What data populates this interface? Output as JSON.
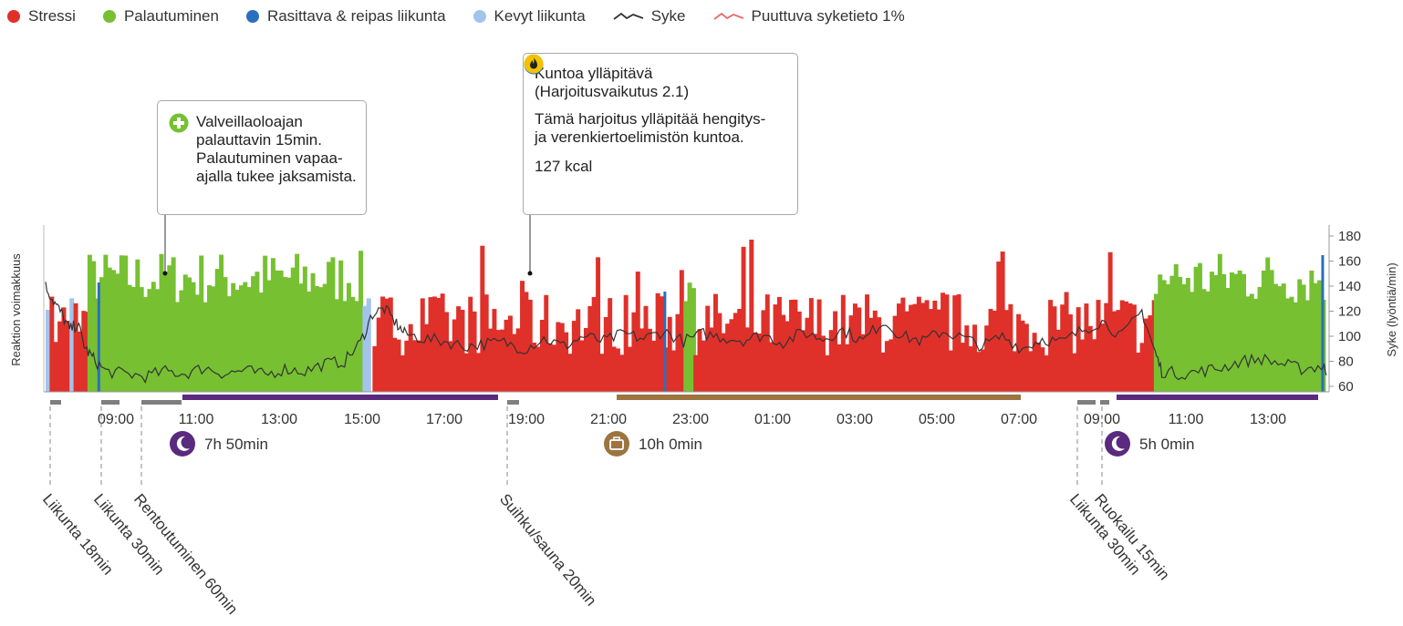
{
  "legend": {
    "stress": "Stressi",
    "recovery": "Palautuminen",
    "heavy": "Rasittava & reipas liikunta",
    "light": "Kevyt liikunta",
    "hr": "Syke",
    "missing": "Puuttuva syketieto 1%"
  },
  "colors": {
    "stress": "#e0302a",
    "recovery": "#76c032",
    "heavy": "#2a6fbf",
    "light": "#a2c4ec",
    "hr_line": "#333333",
    "missing": "#e86a6a",
    "sleep": "#5a2a7e",
    "work": "#9b7440",
    "activity_marker": "#7f7f7f"
  },
  "callouts": {
    "recovery": {
      "icon": "plus-circle-icon",
      "text": "Valveillaoloajan palauttavin 15min. Palautuminen vapaa-ajalla tukee jaksamista."
    },
    "exercise": {
      "icon": "running-icon",
      "title": "Kuntoa ylläpitävä (Harjoitusvaikutus 2.1)",
      "body": "Tämä harjoitus ylläpitää hengitys- ja verenkiertoelimistön kuntoa.",
      "kcal_icon": "flame-icon",
      "kcal": "127 kcal"
    }
  },
  "chart_data": {
    "type": "bar",
    "y_left_label": "Reaktion voimakkuus",
    "y_right_label": "Syke (lyöntiä/min)",
    "y_right_ticks": [
      60,
      80,
      100,
      120,
      140,
      160,
      180
    ],
    "x_ticks": [
      "09:00",
      "11:00",
      "13:00",
      "15:00",
      "17:00",
      "19:00",
      "21:00",
      "23:00",
      "01:00",
      "03:00",
      "05:00",
      "07:00",
      "09:00",
      "11:00",
      "13:00"
    ],
    "periods": [
      {
        "type": "sleep",
        "icon": "moon-icon",
        "duration": "7h 50min"
      },
      {
        "type": "work",
        "icon": "briefcase-icon",
        "duration": "10h 0min"
      },
      {
        "type": "sleep",
        "icon": "moon-icon",
        "duration": "5h 0min"
      }
    ],
    "activities": [
      "Liikunta 18min",
      "Liikunta 30min",
      "Rentoutuminen 60min",
      "Suihku/sauna 20min",
      "Liikunta 30min",
      "Ruokailu 15min"
    ],
    "segments": [
      {
        "kind": "light",
        "from": 0.0,
        "to": 0.1
      },
      {
        "kind": "stress",
        "from": 0.1,
        "to": 0.6
      },
      {
        "kind": "light",
        "from": 0.6,
        "to": 0.7
      },
      {
        "kind": "stress",
        "from": 0.7,
        "to": 1.05
      },
      {
        "kind": "recovery",
        "from": 1.05,
        "to": 7.95
      },
      {
        "kind": "light",
        "from": 7.95,
        "to": 8.2
      },
      {
        "kind": "stress",
        "from": 8.2,
        "to": 16.0
      },
      {
        "kind": "recovery",
        "from": 16.0,
        "to": 16.25
      },
      {
        "kind": "stress",
        "from": 16.25,
        "to": 27.8
      },
      {
        "kind": "recovery",
        "from": 27.8,
        "to": 32.15
      }
    ],
    "hr_series": [
      [
        0.0,
        140
      ],
      [
        0.2,
        128
      ],
      [
        0.4,
        118
      ],
      [
        0.6,
        105
      ],
      [
        0.8,
        110
      ],
      [
        1.0,
        90
      ],
      [
        1.2,
        82
      ],
      [
        1.5,
        72
      ],
      [
        2.0,
        70
      ],
      [
        2.5,
        68
      ],
      [
        3.0,
        72
      ],
      [
        3.5,
        70
      ],
      [
        4.0,
        75
      ],
      [
        4.5,
        70
      ],
      [
        5.0,
        73
      ],
      [
        5.5,
        69
      ],
      [
        6.0,
        74
      ],
      [
        6.5,
        72
      ],
      [
        7.0,
        78
      ],
      [
        7.5,
        80
      ],
      [
        7.9,
        95
      ],
      [
        8.2,
        118
      ],
      [
        8.5,
        122
      ],
      [
        8.8,
        110
      ],
      [
        9.0,
        102
      ],
      [
        9.5,
        98
      ],
      [
        10.0,
        96
      ],
      [
        10.5,
        92
      ],
      [
        11.0,
        94
      ],
      [
        11.5,
        95
      ],
      [
        12.0,
        90
      ],
      [
        12.5,
        98
      ],
      [
        13.0,
        92
      ],
      [
        13.5,
        100
      ],
      [
        14.0,
        96
      ],
      [
        14.5,
        102
      ],
      [
        15.0,
        98
      ],
      [
        15.5,
        104
      ],
      [
        16.0,
        96
      ],
      [
        16.5,
        102
      ],
      [
        17.0,
        99
      ],
      [
        17.5,
        97
      ],
      [
        18.0,
        101
      ],
      [
        18.5,
        95
      ],
      [
        19.0,
        103
      ],
      [
        19.5,
        98
      ],
      [
        20.0,
        105
      ],
      [
        20.5,
        96
      ],
      [
        21.0,
        112
      ],
      [
        21.5,
        100
      ],
      [
        22.0,
        96
      ],
      [
        22.5,
        104
      ],
      [
        23.0,
        99
      ],
      [
        23.5,
        92
      ],
      [
        24.0,
        100
      ],
      [
        24.5,
        90
      ],
      [
        25.0,
        98
      ],
      [
        25.5,
        95
      ],
      [
        26.0,
        105
      ],
      [
        26.5,
        112
      ],
      [
        27.0,
        100
      ],
      [
        27.5,
        120
      ],
      [
        27.8,
        90
      ],
      [
        28.0,
        72
      ],
      [
        28.5,
        70
      ],
      [
        29.0,
        72
      ],
      [
        29.5,
        75
      ],
      [
        30.0,
        80
      ],
      [
        30.5,
        82
      ],
      [
        31.0,
        78
      ],
      [
        31.5,
        74
      ],
      [
        32.0,
        76
      ],
      [
        32.15,
        72
      ]
    ],
    "hours_span": [
      7.4,
      39.55
    ]
  }
}
